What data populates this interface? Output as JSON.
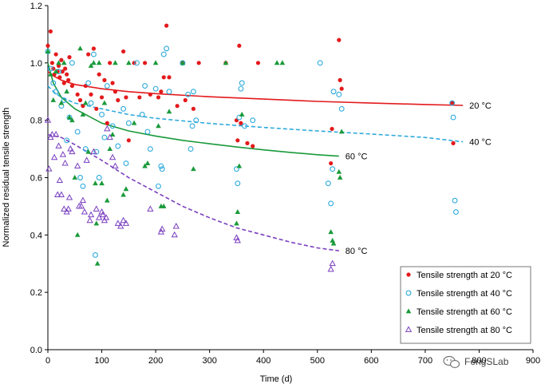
{
  "chart_data": {
    "type": "scatter",
    "title": "",
    "xlabel": "Time (d)",
    "ylabel": "Normalized  residual tensile strength",
    "xlim": [
      0,
      900
    ],
    "ylim": [
      0,
      1.2
    ],
    "x_ticks": [
      "0",
      "100",
      "200",
      "300",
      "400",
      "500",
      "600",
      "700",
      "800",
      "900"
    ],
    "y_ticks": [
      "0.0",
      "0.2",
      "0.4",
      "0.6",
      "0.8",
      "1.0",
      "1.2"
    ],
    "colors": {
      "t20": "#e31a1c",
      "t40": "#2eaadc",
      "t60": "#1a9a3a",
      "t80": "#7a3fbf"
    },
    "series": [
      {
        "key": "t20",
        "name": "Tensile strength at 20 °C",
        "marker": "circle-filled",
        "points": [
          [
            0,
            1.06
          ],
          [
            5,
            1.11
          ],
          [
            8,
            1.0
          ],
          [
            10,
            0.98
          ],
          [
            12,
            0.96
          ],
          [
            15,
            1.03
          ],
          [
            18,
            0.97
          ],
          [
            20,
            0.99
          ],
          [
            22,
            0.95
          ],
          [
            25,
            1.01
          ],
          [
            27,
            0.97
          ],
          [
            30,
            0.93
          ],
          [
            32,
            0.98
          ],
          [
            35,
            0.96
          ],
          [
            38,
            0.94
          ],
          [
            40,
            1.02
          ],
          [
            45,
            0.92
          ],
          [
            55,
            0.89
          ],
          [
            60,
            0.87
          ],
          [
            65,
            0.85
          ],
          [
            70,
            0.92
          ],
          [
            75,
            1.03
          ],
          [
            80,
            0.89
          ],
          [
            85,
            1.05
          ],
          [
            90,
            0.84
          ],
          [
            95,
            0.96
          ],
          [
            100,
            0.88
          ],
          [
            105,
            0.94
          ],
          [
            110,
            0.79
          ],
          [
            115,
            1.0
          ],
          [
            120,
            0.93
          ],
          [
            125,
            0.9
          ],
          [
            130,
            0.87
          ],
          [
            140,
            1.04
          ],
          [
            145,
            0.88
          ],
          [
            150,
            0.73
          ],
          [
            160,
            1.0
          ],
          [
            170,
            0.88
          ],
          [
            180,
            1.0
          ],
          [
            190,
            0.89
          ],
          [
            205,
            0.88
          ],
          [
            210,
            0.9
          ],
          [
            215,
            0.95
          ],
          [
            220,
            1.13
          ],
          [
            225,
            0.95
          ],
          [
            240,
            0.85
          ],
          [
            250,
            1.0
          ],
          [
            255,
            0.87
          ],
          [
            270,
            0.84
          ],
          [
            280,
            1.0
          ],
          [
            330,
            1.0
          ],
          [
            350,
            0.8
          ],
          [
            352,
            0.73
          ],
          [
            355,
            1.06
          ],
          [
            358,
            0.79
          ],
          [
            370,
            0.72
          ],
          [
            380,
            0.71
          ],
          [
            390,
            1.0
          ],
          [
            525,
            0.65
          ],
          [
            527,
            0.77
          ],
          [
            540,
            1.08
          ],
          [
            542,
            0.94
          ],
          [
            545,
            0.91
          ],
          [
            750,
            0.86
          ],
          [
            752,
            0.72
          ]
        ],
        "curve": {
          "x": [
            0,
            10,
            25,
            50,
            100,
            150,
            200,
            300,
            400,
            500,
            600,
            700,
            770
          ],
          "y": [
            0.97,
            0.955,
            0.94,
            0.925,
            0.91,
            0.9,
            0.893,
            0.882,
            0.874,
            0.866,
            0.86,
            0.855,
            0.852
          ],
          "style": "solid",
          "label": "20 °C"
        }
      },
      {
        "key": "t40",
        "name": "Tensile strength at 40 °C",
        "marker": "circle-open",
        "points": [
          [
            0,
            1.04
          ],
          [
            5,
            0.98
          ],
          [
            10,
            0.93
          ],
          [
            15,
            0.9
          ],
          [
            20,
            0.97
          ],
          [
            25,
            0.85
          ],
          [
            30,
            0.87
          ],
          [
            35,
            0.73
          ],
          [
            40,
            0.81
          ],
          [
            45,
            1.0
          ],
          [
            55,
            0.76
          ],
          [
            60,
            0.6
          ],
          [
            65,
            0.57
          ],
          [
            70,
            0.7
          ],
          [
            75,
            0.93
          ],
          [
            80,
            0.86
          ],
          [
            85,
            1.03
          ],
          [
            88,
            0.33
          ],
          [
            90,
            0.69
          ],
          [
            95,
            0.6
          ],
          [
            100,
            0.82
          ],
          [
            105,
            0.74
          ],
          [
            110,
            0.92
          ],
          [
            120,
            0.78
          ],
          [
            130,
            0.71
          ],
          [
            140,
            0.84
          ],
          [
            145,
            0.65
          ],
          [
            150,
            0.79
          ],
          [
            165,
            1.0
          ],
          [
            175,
            0.82
          ],
          [
            180,
            0.92
          ],
          [
            185,
            0.76
          ],
          [
            190,
            0.7
          ],
          [
            200,
            0.91
          ],
          [
            205,
            0.57
          ],
          [
            210,
            0.64
          ],
          [
            212,
            0.63
          ],
          [
            215,
            1.03
          ],
          [
            220,
            1.05
          ],
          [
            225,
            0.9
          ],
          [
            250,
            1.0
          ],
          [
            260,
            0.89
          ],
          [
            265,
            0.7
          ],
          [
            268,
            0.78
          ],
          [
            270,
            0.9
          ],
          [
            275,
            0.8
          ],
          [
            350,
            0.63
          ],
          [
            352,
            0.58
          ],
          [
            355,
            0.81
          ],
          [
            358,
            0.91
          ],
          [
            360,
            0.93
          ],
          [
            365,
            0.78
          ],
          [
            380,
            0.8
          ],
          [
            505,
            1.0
          ],
          [
            520,
            0.58
          ],
          [
            525,
            0.51
          ],
          [
            528,
            0.63
          ],
          [
            530,
            0.9
          ],
          [
            540,
            0.89
          ],
          [
            545,
            0.84
          ],
          [
            750,
            0.86
          ],
          [
            752,
            0.81
          ],
          [
            755,
            0.52
          ],
          [
            757,
            0.48
          ]
        ],
        "curve": {
          "x": [
            0,
            10,
            25,
            50,
            100,
            150,
            200,
            300,
            400,
            500,
            600,
            700,
            770
          ],
          "y": [
            0.92,
            0.9,
            0.88,
            0.86,
            0.84,
            0.82,
            0.807,
            0.789,
            0.775,
            0.763,
            0.752,
            0.74,
            0.725
          ],
          "style": "dashed",
          "label": "40 °C"
        }
      },
      {
        "key": "t60",
        "name": "Tensile strength at 60 °C",
        "marker": "triangle-filled",
        "points": [
          [
            0,
            1.04
          ],
          [
            5,
            0.96
          ],
          [
            10,
            0.87
          ],
          [
            15,
            0.97
          ],
          [
            20,
            1.0
          ],
          [
            25,
            0.86
          ],
          [
            30,
            1.0
          ],
          [
            35,
            0.9
          ],
          [
            40,
            0.81
          ],
          [
            45,
            0.8
          ],
          [
            50,
            0.6
          ],
          [
            55,
            0.4
          ],
          [
            60,
            1.05
          ],
          [
            65,
            0.82
          ],
          [
            70,
            0.86
          ],
          [
            75,
            0.69
          ],
          [
            80,
            0.99
          ],
          [
            85,
            1.0
          ],
          [
            88,
            0.58
          ],
          [
            90,
            0.44
          ],
          [
            92,
            0.3
          ],
          [
            95,
            1.0
          ],
          [
            100,
            0.58
          ],
          [
            105,
            0.86
          ],
          [
            110,
            0.52
          ],
          [
            115,
            0.7
          ],
          [
            120,
            0.75
          ],
          [
            125,
            1.0
          ],
          [
            140,
            0.54
          ],
          [
            145,
            0.56
          ],
          [
            150,
            1.0
          ],
          [
            160,
            0.79
          ],
          [
            180,
            0.64
          ],
          [
            185,
            0.65
          ],
          [
            200,
            1.0
          ],
          [
            205,
            0.78
          ],
          [
            210,
            0.5
          ],
          [
            215,
            0.5
          ],
          [
            225,
            0.83
          ],
          [
            250,
            1.0
          ],
          [
            270,
            0.63
          ],
          [
            330,
            1.0
          ],
          [
            350,
            0.44
          ],
          [
            352,
            0.48
          ],
          [
            355,
            0.64
          ],
          [
            360,
            0.82
          ],
          [
            425,
            1.0
          ],
          [
            435,
            1.0
          ],
          [
            525,
            0.41
          ],
          [
            528,
            0.38
          ],
          [
            530,
            0.37
          ],
          [
            540,
            0.62
          ],
          [
            542,
            0.6
          ],
          [
            545,
            0.76
          ]
        ],
        "curve": {
          "x": [
            0,
            10,
            25,
            50,
            100,
            150,
            200,
            250,
            300,
            350,
            400,
            450,
            500,
            540
          ],
          "y": [
            1.0,
            0.93,
            0.88,
            0.84,
            0.79,
            0.763,
            0.745,
            0.73,
            0.718,
            0.707,
            0.697,
            0.688,
            0.68,
            0.675
          ],
          "style": "solid",
          "label": "60 °C"
        }
      },
      {
        "key": "t80",
        "name": "Tensile strength at 80 °C",
        "marker": "triangle-open",
        "points": [
          [
            0,
            0.8
          ],
          [
            2,
            0.63
          ],
          [
            5,
            0.74
          ],
          [
            8,
            0.75
          ],
          [
            12,
            0.67
          ],
          [
            15,
            0.75
          ],
          [
            18,
            0.54
          ],
          [
            20,
            0.71
          ],
          [
            22,
            0.59
          ],
          [
            25,
            0.54
          ],
          [
            28,
            0.68
          ],
          [
            30,
            0.49
          ],
          [
            32,
            0.65
          ],
          [
            35,
            0.48
          ],
          [
            38,
            0.49
          ],
          [
            40,
            0.53
          ],
          [
            42,
            0.7
          ],
          [
            45,
            0.69
          ],
          [
            55,
            0.64
          ],
          [
            58,
            0.5
          ],
          [
            62,
            0.5
          ],
          [
            65,
            0.52
          ],
          [
            68,
            0.48
          ],
          [
            72,
            0.66
          ],
          [
            78,
            0.45
          ],
          [
            80,
            0.47
          ],
          [
            85,
            0.69
          ],
          [
            90,
            0.49
          ],
          [
            95,
            0.46
          ],
          [
            100,
            0.48
          ],
          [
            102,
            0.47
          ],
          [
            105,
            0.45
          ],
          [
            108,
            0.46
          ],
          [
            110,
            0.77
          ],
          [
            115,
            0.74
          ],
          [
            120,
            0.67
          ],
          [
            125,
            0.64
          ],
          [
            130,
            0.44
          ],
          [
            135,
            0.43
          ],
          [
            140,
            0.45
          ],
          [
            145,
            0.44
          ],
          [
            190,
            0.49
          ],
          [
            210,
            0.41
          ],
          [
            212,
            0.42
          ],
          [
            235,
            0.4
          ],
          [
            238,
            0.43
          ],
          [
            350,
            0.39
          ],
          [
            352,
            0.38
          ],
          [
            525,
            0.28
          ],
          [
            528,
            0.3
          ]
        ],
        "curve": {
          "x": [
            0,
            25,
            50,
            100,
            150,
            200,
            250,
            300,
            350,
            400,
            450,
            500,
            540
          ],
          "y": [
            0.75,
            0.74,
            0.715,
            0.66,
            0.6,
            0.55,
            0.5,
            0.46,
            0.425,
            0.4,
            0.375,
            0.355,
            0.345
          ],
          "style": "dashed",
          "label": "80 °C"
        }
      }
    ]
  },
  "legend": {
    "items": [
      {
        "key": "t20",
        "label": "Tensile strength at 20 °C",
        "marker": "circle-filled"
      },
      {
        "key": "t40",
        "label": "Tensile strength at 40 °C",
        "marker": "circle-open"
      },
      {
        "key": "t60",
        "label": "Tensile strength at 60 °C",
        "marker": "triangle-filled"
      },
      {
        "key": "t80",
        "label": "Tensile strength at 80 °C",
        "marker": "triangle-open"
      }
    ]
  },
  "watermark": {
    "text": "FengSLab",
    "icon": "wechat-icon"
  }
}
